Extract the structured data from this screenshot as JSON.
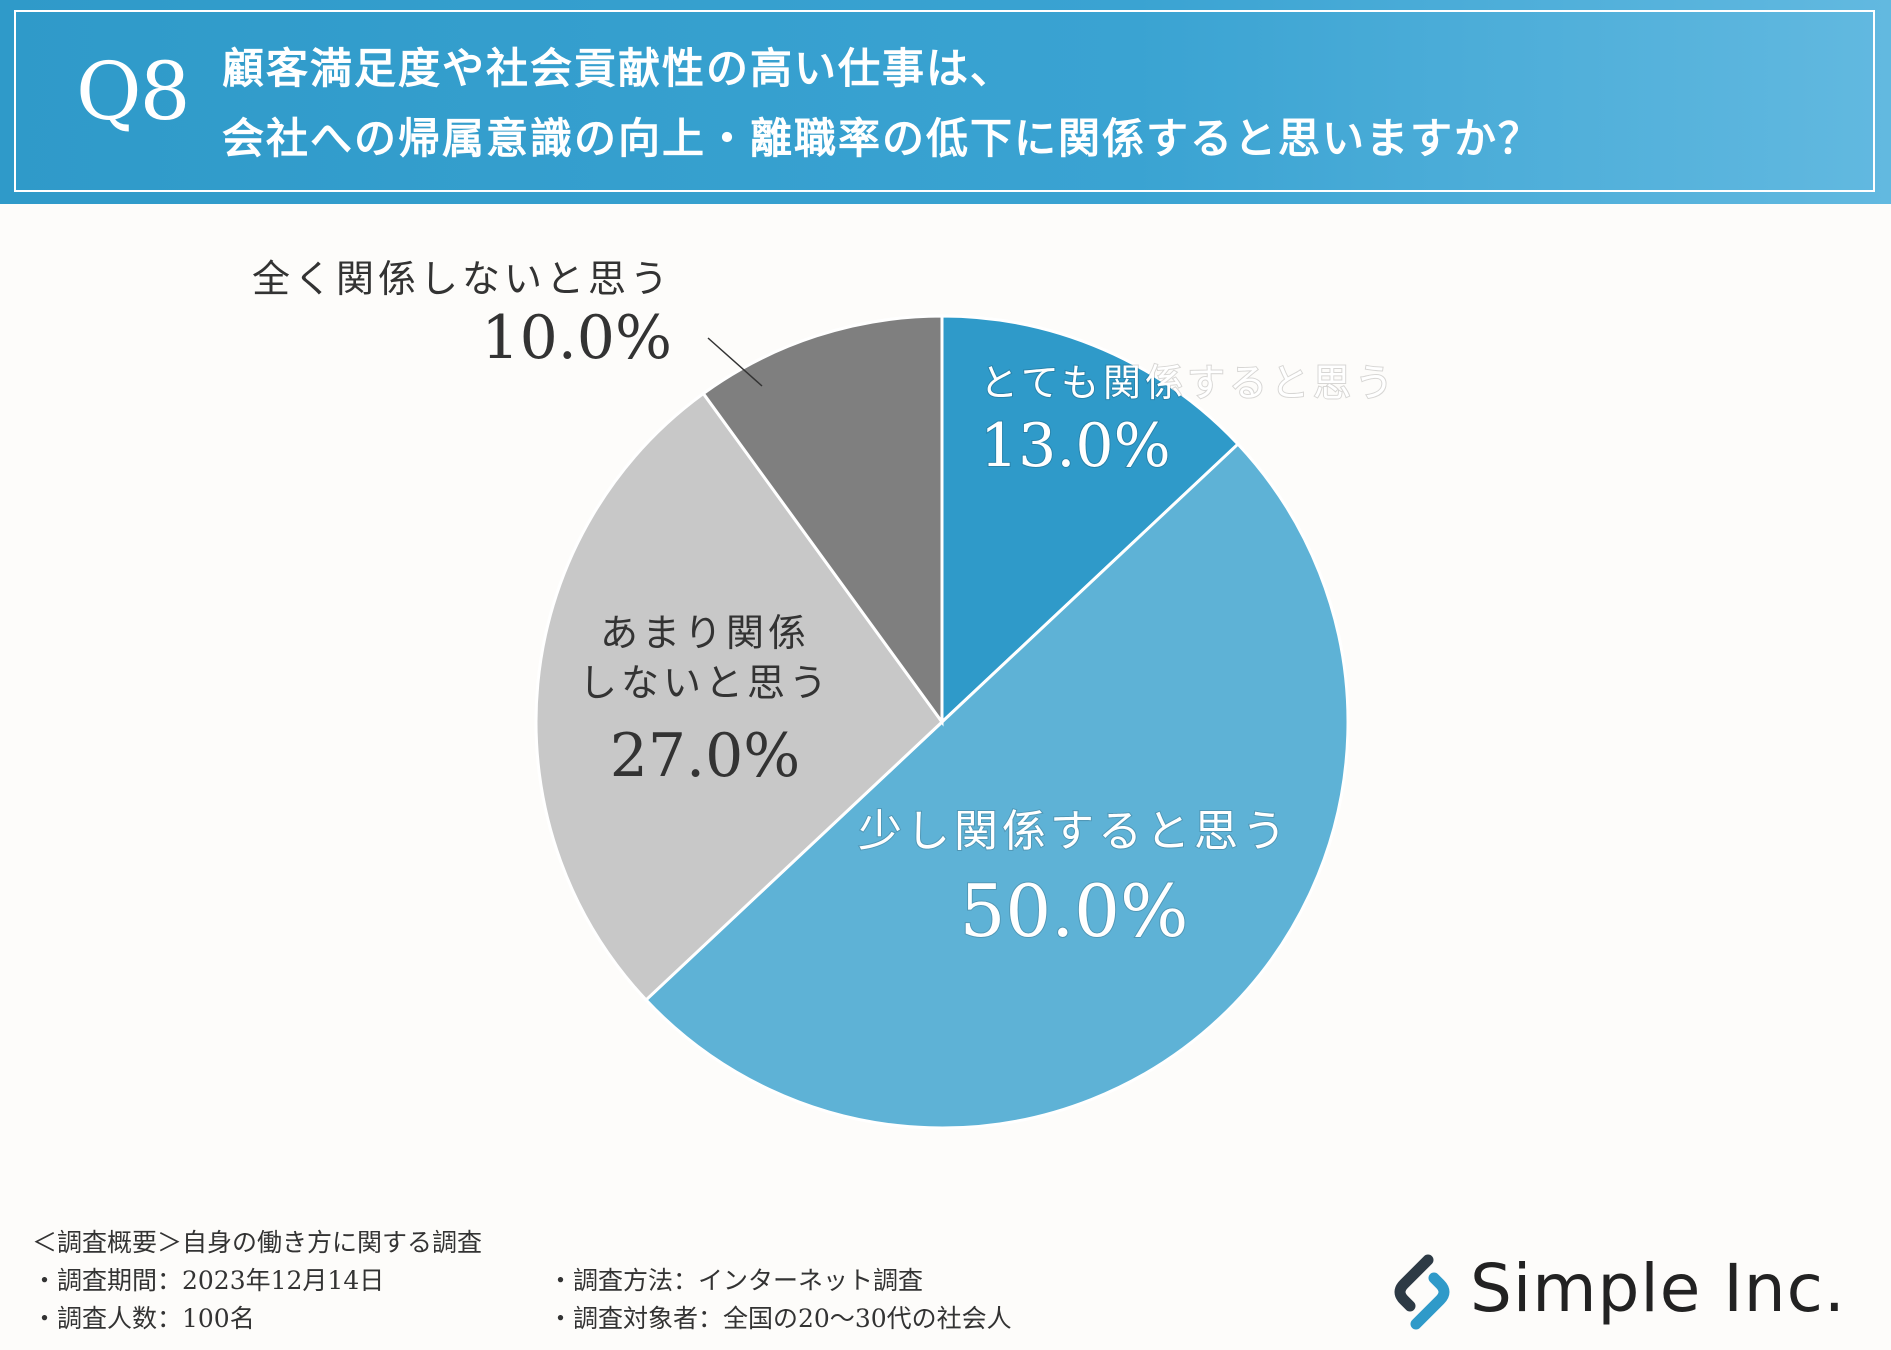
{
  "header": {
    "q_label": "Q8",
    "question_line1": "顧客満足度や社会貢献性の高い仕事は、",
    "question_line2": "会社への帰属意識の向上・離職率の低下に関係すると思いますか？"
  },
  "chart_data": {
    "type": "pie",
    "title": "",
    "slices": [
      {
        "label": "とても関係すると思う",
        "value": 13.0,
        "display": "13.0%",
        "color": "#2f9ac9"
      },
      {
        "label": "少し関係すると思う",
        "value": 50.0,
        "display": "50.0%",
        "color": "#5eb2d6"
      },
      {
        "label": "あまり関係しないと思う",
        "label_lines": [
          "あまり関係",
          "しないと思う"
        ],
        "value": 27.0,
        "display": "27.0%",
        "color": "#c8c8c8"
      },
      {
        "label": "全く関係しないと思う",
        "value": 10.0,
        "display": "10.0%",
        "color": "#7f7f7f"
      }
    ]
  },
  "footer": {
    "summary": "＜調査概要＞自身の働き方に関する調査",
    "period": "・調査期間：2023年12月14日",
    "count": "・調査人数：100名",
    "method": "・調査方法：インターネット調査",
    "target": "・調査対象者：全国の20～30代の社会人"
  },
  "logo": {
    "text": "Simple Inc.",
    "colors": {
      "dark": "#2d3a45",
      "accent": "#2f9ac9"
    }
  }
}
